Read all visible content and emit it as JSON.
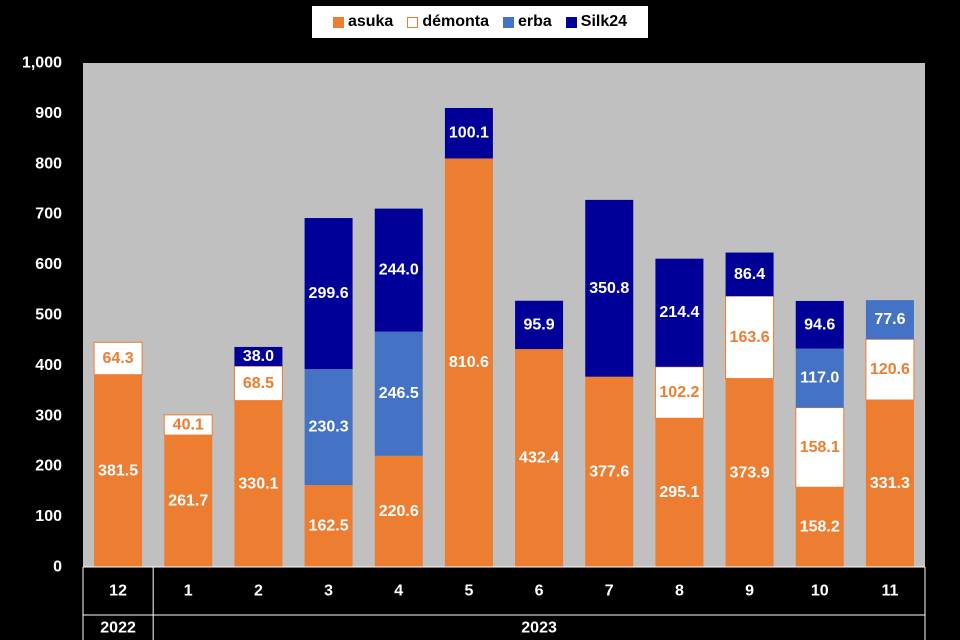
{
  "chart_data": {
    "type": "bar",
    "stacked": true,
    "categories": [
      "12",
      "1",
      "2",
      "3",
      "4",
      "5",
      "6",
      "7",
      "8",
      "9",
      "10",
      "11"
    ],
    "year_groups": [
      {
        "label": "2022",
        "span": 1
      },
      {
        "label": "2023",
        "span": 11
      }
    ],
    "series": [
      {
        "name": "asuka",
        "color": "#ED7D31",
        "label_color": "#FFFFFF",
        "values": [
          381.5,
          261.7,
          330.1,
          162.5,
          220.6,
          810.6,
          432.4,
          377.6,
          295.1,
          373.9,
          158.2,
          331.3
        ],
        "labels": [
          "381.5",
          "261.7",
          "330.1",
          "162.5",
          "220.6",
          "810.6",
          "432.4",
          "377.6",
          "295.1",
          "373.9",
          "158.2",
          "331.3"
        ]
      },
      {
        "name": "démonta",
        "color": "#FFFFFF",
        "label_color": "#ED7D31",
        "border": "#ED7D31",
        "values": [
          64.3,
          40.1,
          68.5,
          null,
          null,
          null,
          null,
          null,
          102.2,
          163.6,
          158.1,
          120.6
        ],
        "labels": [
          "64.3",
          "40.1",
          "68.5",
          null,
          null,
          null,
          null,
          null,
          "102.2",
          "163.6",
          "158.1",
          "120.6"
        ]
      },
      {
        "name": "erba",
        "color": "#4472C4",
        "label_color": "#FFFFFF",
        "values": [
          null,
          null,
          null,
          230.3,
          246.5,
          null,
          null,
          null,
          null,
          null,
          117.0,
          77.6
        ],
        "labels": [
          null,
          null,
          null,
          "230.3",
          "246.5",
          null,
          null,
          null,
          null,
          null,
          "117.0",
          "77.6"
        ]
      },
      {
        "name": "Silk24",
        "color": "#000099",
        "label_color": "#FFFFFF",
        "values": [
          null,
          null,
          38.0,
          299.6,
          244.0,
          100.1,
          95.9,
          350.8,
          214.4,
          86.4,
          94.6,
          null
        ],
        "labels": [
          null,
          null,
          "38.0",
          "299.6",
          "244.0",
          "100.1",
          "95.9",
          "350.8",
          "214.4",
          "86.4",
          "94.6",
          null
        ]
      }
    ],
    "ylim": [
      0,
      1000
    ],
    "yticks": [
      0,
      100,
      200,
      300,
      400,
      500,
      600,
      700,
      800,
      900,
      1000
    ],
    "ytick_labels": [
      "0",
      "100",
      "200",
      "300",
      "400",
      "500",
      "600",
      "700",
      "800",
      "900",
      "1,000"
    ],
    "grid": false,
    "legend": "top-center",
    "plot_background": "#C0C0C0",
    "page_background": "#000000",
    "axis_text_color": "#FFFFFF"
  }
}
